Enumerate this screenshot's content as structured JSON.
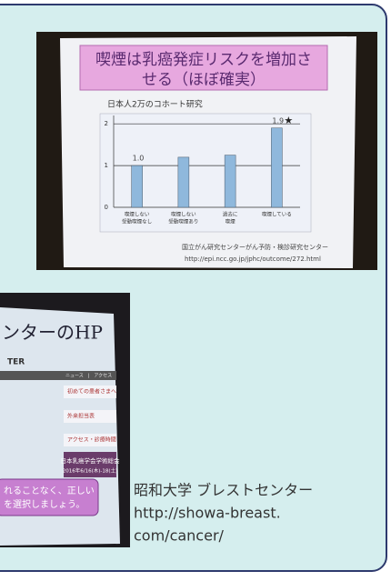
{
  "slide1": {
    "title_line1": "喫煙は乳癌発症リスクを増加さ",
    "title_line2": "せる（ほぼ確実）",
    "subtitle": "日本人2万のコホート研究",
    "chart": {
      "type": "bar",
      "categories": [
        [
          "喫煙しない",
          "受動喫煙なし"
        ],
        [
          "喫煙しない",
          "受動喫煙あり"
        ],
        [
          "過去に",
          "喫煙"
        ],
        [
          "喫煙している"
        ]
      ],
      "values": [
        1.0,
        1.2,
        1.25,
        1.9
      ],
      "value_labels": [
        "1.0",
        null,
        null,
        "1.9"
      ],
      "marker": "★",
      "ylim": [
        0,
        2.2
      ],
      "yticks": [
        0,
        1,
        2
      ],
      "color": "#8fb8dc"
    },
    "source_line1": "国立がん研究センターがん予防・検診研究センター",
    "source_line2": "http://epi.ncc.go.jp/jphc/outcome/272.html"
  },
  "slide2": {
    "title": "ンターのHP",
    "logo": "TER",
    "nav": "ニュース　|　アクセス",
    "menu": [
      "初めての患者さまへ",
      "外来担当表",
      "アクセス・診療時間"
    ],
    "banner_line1": "日本乳癌学会学術総会",
    "banner_line2": "2016年6/16(木)-18(土)",
    "callout_line1": "れることなく、正しい",
    "callout_line2": "を選択しましょう。"
  },
  "caption": {
    "line1": "昭和大学 ブレストセンター",
    "line2": "http://showa-breast.",
    "line3": "com/cancer/"
  }
}
